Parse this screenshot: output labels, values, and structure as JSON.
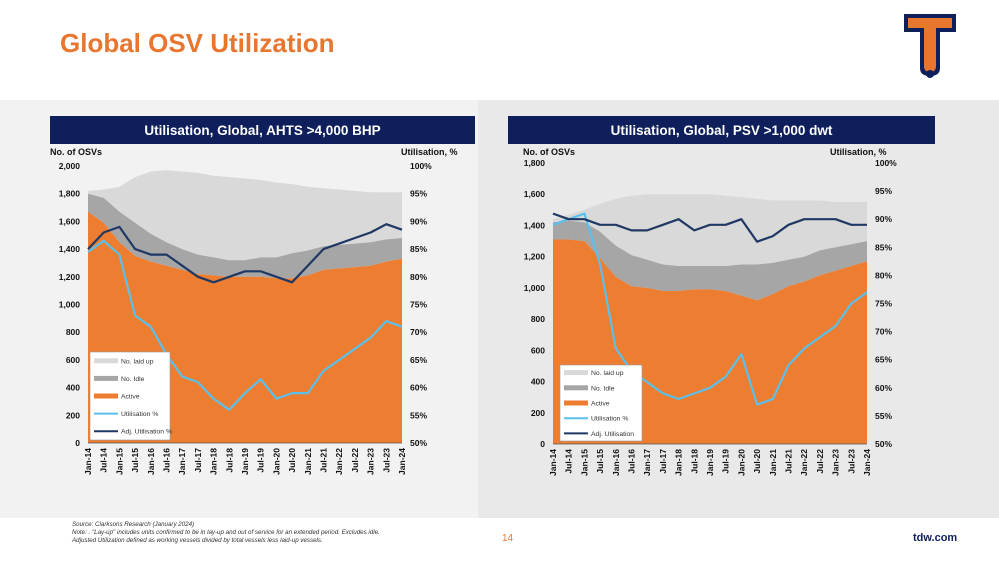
{
  "page": {
    "title": "Global OSV Utilization",
    "page_number": "14",
    "website": "tdw.com",
    "footnotes": [
      "Source: Clarksons Research (January 2024)",
      "Note: . \"Lay-up\" includes units confirmed to be in lay-up and out of service for an extended period. Excludes idle.",
      "Adjusted Utilization defined as working vessels divided by total vessels less laid-up vessels."
    ]
  },
  "colors": {
    "title": "#e8762f",
    "header_bg": "#0f1f5c",
    "laid_up": "#d9d9d9",
    "idle": "#a6a6a6",
    "active": "#ed7d31",
    "util": "#5bc0eb",
    "adj_util": "#1f3864"
  },
  "chart_data": [
    {
      "type": "area",
      "title": "Utilisation, Global, AHTS >4,000 BHP",
      "ylabel": "No. of OSVs",
      "y2label": "Utilisation, %",
      "ylim": [
        0,
        2000
      ],
      "y_ticks": [
        "0",
        "200",
        "400",
        "600",
        "800",
        "1,000",
        "1,200",
        "1,400",
        "1,600",
        "1,800",
        "2,000"
      ],
      "y2lim": [
        50,
        100
      ],
      "y2_ticks": [
        "50%",
        "55%",
        "60%",
        "65%",
        "70%",
        "75%",
        "80%",
        "85%",
        "90%",
        "95%",
        "100%"
      ],
      "x_ticks": [
        "Jan-14",
        "Jul-14",
        "Jan-15",
        "Jul-15",
        "Jan-16",
        "Jul-16",
        "Jan-17",
        "Jul-17",
        "Jan-18",
        "Jul-18",
        "Jan-19",
        "Jul-19",
        "Jan-20",
        "Jul-20",
        "Jan-21",
        "Jul-21",
        "Jan-22",
        "Jul-22",
        "Jan-23",
        "Jul-23",
        "Jan-24"
      ],
      "legend": [
        "No. laid up",
        "No. Idle",
        "Active",
        "Utilisation %",
        "Adj. Utilisation %"
      ],
      "legend_position": "bottom-left",
      "series": {
        "total": [
          1820,
          1830,
          1850,
          1920,
          1960,
          1970,
          1960,
          1950,
          1930,
          1920,
          1910,
          1900,
          1880,
          1870,
          1850,
          1840,
          1830,
          1820,
          1810,
          1810,
          1810
        ],
        "laid_up": [
          20,
          60,
          180,
          330,
          450,
          520,
          560,
          590,
          590,
          590,
          590,
          560,
          540,
          500,
          460,
          420,
          400,
          380,
          360,
          340,
          330
        ],
        "idle": [
          130,
          180,
          220,
          240,
          200,
          170,
          150,
          140,
          130,
          120,
          120,
          140,
          150,
          180,
          180,
          170,
          170,
          170,
          170,
          160,
          150
        ],
        "active": [
          1670,
          1590,
          1450,
          1350,
          1310,
          1280,
          1250,
          1220,
          1210,
          1200,
          1200,
          1200,
          1190,
          1190,
          1210,
          1250,
          1260,
          1270,
          1280,
          1310,
          1330
        ],
        "utilisation_pct": [
          84.5,
          86.5,
          84,
          73,
          71,
          66,
          62,
          61,
          58,
          56,
          59,
          61.5,
          58,
          59,
          59,
          63,
          65,
          67,
          69,
          72,
          71
        ],
        "adj_utilisation_pct": [
          85,
          88,
          89,
          85,
          84,
          84,
          82,
          80,
          79,
          80,
          81,
          81,
          80,
          79,
          82,
          85,
          86,
          87,
          88,
          89.5,
          88.5
        ]
      }
    },
    {
      "type": "area",
      "title": "Utilisation, Global, PSV >1,000 dwt",
      "ylabel": "No. of OSVs",
      "y2label": "Utilisation, %",
      "ylim": [
        0,
        1800
      ],
      "y_ticks": [
        "0",
        "200",
        "400",
        "600",
        "800",
        "1,000",
        "1,200",
        "1,400",
        "1,600",
        "1,800"
      ],
      "y2lim": [
        50,
        100
      ],
      "y2_ticks": [
        "50%",
        "55%",
        "60%",
        "65%",
        "70%",
        "75%",
        "80%",
        "85%",
        "90%",
        "95%",
        "100%"
      ],
      "x_ticks": [
        "Jan-14",
        "Jul-14",
        "Jan-15",
        "Jul-15",
        "Jan-16",
        "Jul-16",
        "Jan-17",
        "Jul-17",
        "Jan-18",
        "Jul-18",
        "Jan-19",
        "Jul-19",
        "Jan-20",
        "Jul-20",
        "Jan-21",
        "Jul-21",
        "Jan-22",
        "Jul-22",
        "Jan-23",
        "Jul-23",
        "Jan-24"
      ],
      "legend": [
        "No. laid up",
        "No. Idle",
        "Active",
        "Utilisation %",
        "Adj. Utilisation"
      ],
      "legend_position": "bottom-left",
      "series": {
        "total": [
          1440,
          1470,
          1500,
          1540,
          1570,
          1590,
          1600,
          1600,
          1600,
          1600,
          1600,
          1590,
          1580,
          1570,
          1560,
          1560,
          1560,
          1560,
          1550,
          1550,
          1550
        ],
        "laid_up": [
          20,
          40,
          80,
          180,
          300,
          380,
          420,
          450,
          460,
          460,
          460,
          450,
          430,
          420,
          400,
          380,
          360,
          320,
          290,
          270,
          250
        ],
        "idle": [
          110,
          120,
          120,
          170,
          200,
          200,
          180,
          170,
          160,
          150,
          150,
          160,
          200,
          230,
          200,
          170,
          160,
          160,
          150,
          140,
          130
        ],
        "active": [
          1310,
          1310,
          1300,
          1190,
          1070,
          1010,
          1000,
          980,
          980,
          990,
          990,
          980,
          950,
          920,
          960,
          1010,
          1040,
          1080,
          1110,
          1140,
          1170
        ],
        "utilisation_pct": [
          89,
          90,
          91,
          82,
          67,
          63,
          61,
          59,
          58,
          59,
          60,
          62,
          66,
          57,
          58,
          64,
          67,
          69,
          71,
          75,
          77
        ],
        "adj_utilisation_pct": [
          91,
          90,
          90,
          89,
          89,
          88,
          88,
          89,
          90,
          88,
          89,
          89,
          90,
          86,
          87,
          89,
          90,
          90,
          90,
          89,
          89
        ]
      }
    }
  ]
}
